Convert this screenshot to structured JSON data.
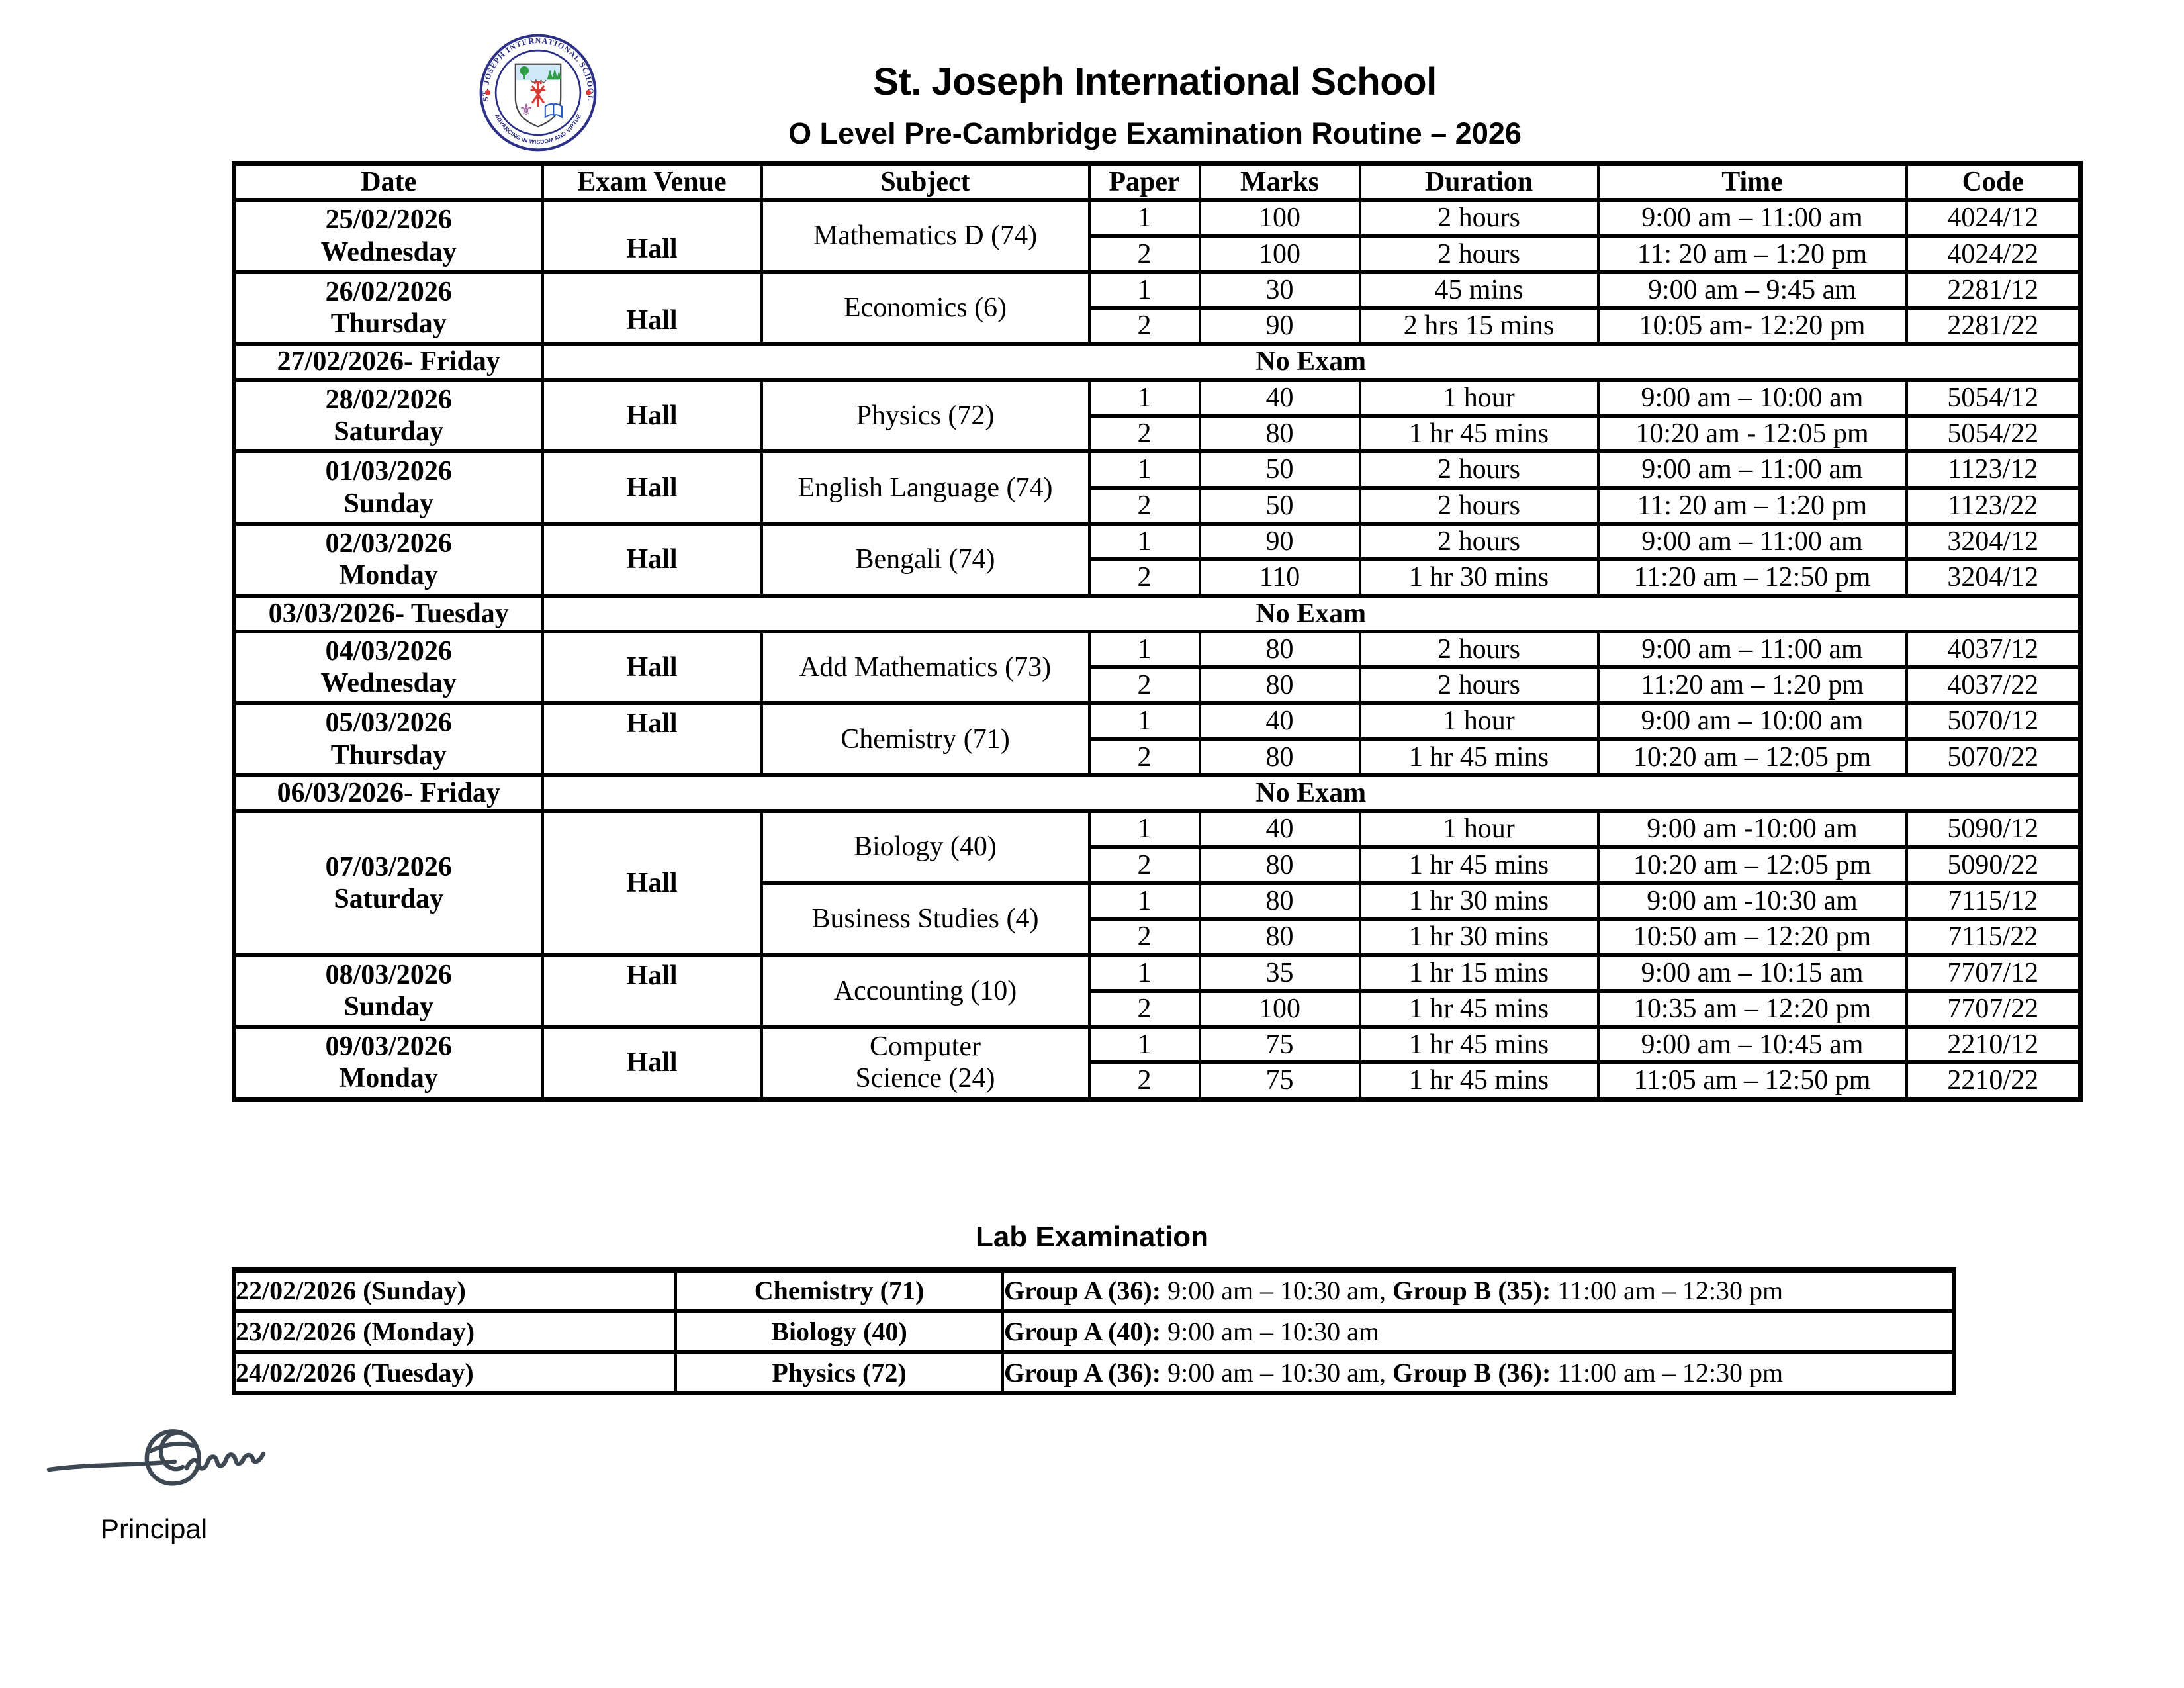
{
  "header": {
    "school_name": "St. Joseph International School",
    "routine_title": "O Level Pre-Cambridge Examination Routine – 2026",
    "logo": {
      "ring_text": "ST. JOSEPH INTERNATIONAL SCHOOL",
      "motto_text": "ADVANCING IN WISDOM AND VIRTUE"
    }
  },
  "exam_table": {
    "columns": [
      "Date",
      "Exam Venue",
      "Subject",
      "Paper",
      "Marks",
      "Duration",
      "Time",
      "Code"
    ],
    "no_exam_label": "No Exam",
    "groups": [
      {
        "date": [
          "25/02/2026",
          "Wednesday"
        ],
        "venue": "Hall",
        "venue_align": "bottom",
        "subjects": [
          {
            "name": [
              "Mathematics D (74)"
            ],
            "papers": [
              {
                "paper": "1",
                "marks": "100",
                "duration": "2 hours",
                "time": "9:00 am – 11:00 am",
                "code": "4024/12"
              },
              {
                "paper": "2",
                "marks": "100",
                "duration": "2 hours",
                "time": "11: 20 am – 1:20 pm",
                "code": "4024/22"
              }
            ]
          }
        ]
      },
      {
        "date": [
          "26/02/2026",
          "Thursday"
        ],
        "venue": "Hall",
        "venue_align": "bottom",
        "subjects": [
          {
            "name": [
              "Economics (6)"
            ],
            "papers": [
              {
                "paper": "1",
                "marks": "30",
                "duration": "45 mins",
                "time": "9:00 am – 9:45 am",
                "code": "2281/12"
              },
              {
                "paper": "2",
                "marks": "90",
                "duration": "2 hrs 15 mins",
                "time": "10:05 am- 12:20 pm",
                "code": "2281/22"
              }
            ]
          }
        ]
      },
      {
        "no_exam": true,
        "date": "27/02/2026- Friday"
      },
      {
        "date": [
          "28/02/2026",
          "Saturday"
        ],
        "venue": "Hall",
        "venue_align": "middle",
        "subjects": [
          {
            "name": [
              "Physics (72)"
            ],
            "papers": [
              {
                "paper": "1",
                "marks": "40",
                "duration": "1 hour",
                "time": "9:00 am – 10:00 am",
                "code": "5054/12"
              },
              {
                "paper": "2",
                "marks": "80",
                "duration": "1 hr 45 mins",
                "time": "10:20 am - 12:05 pm",
                "code": "5054/22"
              }
            ]
          }
        ]
      },
      {
        "date": [
          "01/03/2026",
          "Sunday"
        ],
        "venue": "Hall",
        "venue_align": "middle",
        "subjects": [
          {
            "name": [
              "English Language (74)"
            ],
            "papers": [
              {
                "paper": "1",
                "marks": "50",
                "duration": "2 hours",
                "time": "9:00 am – 11:00 am",
                "code": "1123/12"
              },
              {
                "paper": "2",
                "marks": "50",
                "duration": "2 hours",
                "time": "11: 20 am – 1:20 pm",
                "code": "1123/22"
              }
            ]
          }
        ]
      },
      {
        "date": [
          "02/03/2026",
          "Monday"
        ],
        "venue": "Hall",
        "venue_align": "middle",
        "subjects": [
          {
            "name": [
              "Bengali (74)"
            ],
            "papers": [
              {
                "paper": "1",
                "marks": "90",
                "duration": "2 hours",
                "time": "9:00 am – 11:00 am",
                "code": "3204/12"
              },
              {
                "paper": "2",
                "marks": "110",
                "duration": "1 hr 30 mins",
                "time": "11:20 am – 12:50 pm",
                "code": "3204/12"
              }
            ]
          }
        ]
      },
      {
        "no_exam": true,
        "date": "03/03/2026- Tuesday"
      },
      {
        "date": [
          "04/03/2026",
          "Wednesday"
        ],
        "venue": "Hall",
        "venue_align": "middle",
        "subjects": [
          {
            "name": [
              "Add Mathematics (73)"
            ],
            "papers": [
              {
                "paper": "1",
                "marks": "80",
                "duration": "2 hours",
                "time": "9:00 am – 11:00 am",
                "code": "4037/12"
              },
              {
                "paper": "2",
                "marks": "80",
                "duration": "2 hours",
                "time": "11:20 am – 1:20 pm",
                "code": "4037/22"
              }
            ]
          }
        ]
      },
      {
        "date": [
          "05/03/2026",
          "Thursday"
        ],
        "venue": "Hall",
        "venue_align": "top",
        "subjects": [
          {
            "name": [
              "Chemistry (71)"
            ],
            "papers": [
              {
                "paper": "1",
                "marks": "40",
                "duration": "1 hour",
                "time": "9:00 am – 10:00 am",
                "code": "5070/12"
              },
              {
                "paper": "2",
                "marks": "80",
                "duration": "1 hr 45 mins",
                "time": "10:20 am – 12:05 pm",
                "code": "5070/22"
              }
            ]
          }
        ]
      },
      {
        "no_exam": true,
        "date": "06/03/2026- Friday"
      },
      {
        "date": [
          "07/03/2026",
          "Saturday"
        ],
        "venue": "Hall",
        "venue_align": "middle",
        "subjects": [
          {
            "name": [
              "Biology (40)"
            ],
            "papers": [
              {
                "paper": "1",
                "marks": "40",
                "duration": "1 hour",
                "time": "9:00 am -10:00 am",
                "code": "5090/12"
              },
              {
                "paper": "2",
                "marks": "80",
                "duration": "1 hr 45 mins",
                "time": "10:20 am – 12:05 pm",
                "code": "5090/22"
              }
            ]
          },
          {
            "name": [
              "Business Studies (4)"
            ],
            "papers": [
              {
                "paper": "1",
                "marks": "80",
                "duration": "1 hr 30 mins",
                "time": "9:00 am -10:30 am",
                "code": "7115/12"
              },
              {
                "paper": "2",
                "marks": "80",
                "duration": "1 hr 30 mins",
                "time": "10:50 am – 12:20 pm",
                "code": "7115/22"
              }
            ]
          }
        ]
      },
      {
        "date": [
          "08/03/2026",
          "Sunday"
        ],
        "venue": "Hall",
        "venue_align": "top",
        "subjects": [
          {
            "name": [
              "Accounting (10)"
            ],
            "papers": [
              {
                "paper": "1",
                "marks": "35",
                "duration": "1 hr 15 mins",
                "time": "9:00 am – 10:15 am",
                "code": "7707/12"
              },
              {
                "paper": "2",
                "marks": "100",
                "duration": "1 hr 45 mins",
                "time": "10:35 am – 12:20 pm",
                "code": "7707/22"
              }
            ]
          }
        ]
      },
      {
        "date": [
          "09/03/2026",
          "Monday"
        ],
        "venue": "Hall",
        "venue_align": "middle",
        "subjects": [
          {
            "name": [
              "Computer",
              "Science (24)"
            ],
            "papers": [
              {
                "paper": "1",
                "marks": "75",
                "duration": "1 hr 45 mins",
                "time": "9:00 am – 10:45 am",
                "code": "2210/12"
              },
              {
                "paper": "2",
                "marks": "75",
                "duration": "1 hr 45 mins",
                "time": "11:05 am – 12:50 pm",
                "code": "2210/22"
              }
            ]
          }
        ]
      }
    ]
  },
  "lab_exam": {
    "title": "Lab Examination",
    "rows": [
      {
        "date": "22/02/2026 (Sunday)",
        "subject": "Chemistry (71)",
        "segments": [
          {
            "label": "Group A (36):",
            "time": " 9:00 am – 10:30 am, "
          },
          {
            "label": "Group B (35):",
            "time": " 11:00 am – 12:30 pm"
          }
        ]
      },
      {
        "date": "23/02/2026 (Monday)",
        "subject": "Biology (40)",
        "segments": [
          {
            "label": "Group A (40):",
            "time": " 9:00 am – 10:30 am"
          }
        ]
      },
      {
        "date": "24/02/2026 (Tuesday)",
        "subject": "Physics (72)",
        "segments": [
          {
            "label": "Group A (36):",
            "time": " 9:00 am – 10:30 am, "
          },
          {
            "label": "Group B (36):",
            "time": " 11:00 am – 12:30 pm"
          }
        ]
      }
    ]
  },
  "footer": {
    "principal_label": "Principal"
  },
  "colors": {
    "text": "#000000",
    "logo_ring": "#2b2f86",
    "logo_red": "#d93a35",
    "logo_green": "#2f9e44",
    "logo_purple": "#a85ca8",
    "logo_book_blue": "#2457c5",
    "logo_sky": "#cfe9fa",
    "shield_outline": "#444444",
    "signature_ink": "#3d4852"
  }
}
